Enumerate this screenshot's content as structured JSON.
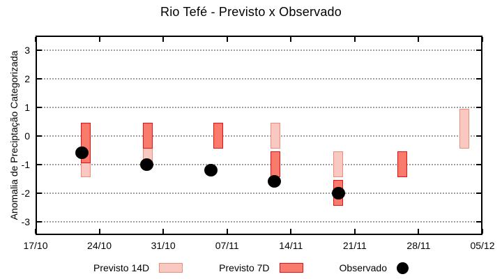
{
  "title": "Rio Tefé - Previsto x Observado",
  "y_axis": {
    "label": "Anomalia de Preciptação Categorizada",
    "ticks": [
      3,
      2,
      1,
      0,
      -1,
      -2,
      -3
    ],
    "range": [
      -3.5,
      3.5
    ]
  },
  "x_axis": {
    "tick_labels": [
      "17/10",
      "24/10",
      "31/10",
      "07/11",
      "14/11",
      "21/11",
      "28/11",
      "05/12"
    ],
    "tick_days": [
      0,
      7,
      14,
      21,
      28,
      35,
      42,
      49
    ],
    "span_days": 49
  },
  "legend": {
    "items": [
      {
        "label": "Previsto 14D",
        "swatch": "box",
        "fill": "#f9c8c0",
        "border": "#f08c7c"
      },
      {
        "label": "Previsto 7D",
        "swatch": "box",
        "fill": "#f87b6e",
        "border": "#e81010"
      },
      {
        "label": "Observado",
        "swatch": "dot",
        "fill": "#000000"
      }
    ]
  },
  "colors": {
    "background": "#ffffff",
    "axis": "#000000",
    "grid": "#9e9e9e",
    "p14_fill": "#f9c8c0",
    "p14_border": "#f08c7c",
    "p7_fill": "#f87b6e",
    "p7_border": "#e81010",
    "obs": "#000000"
  },
  "chart_data": {
    "type": "bar",
    "subtype": "weekly categorized-anomaly range bars with observed scatter points",
    "title": "Rio Tefé - Previsto x Observado",
    "xlabel": "",
    "ylabel": "Anomalia de Preciptação Categorizada",
    "ylim": [
      -3.5,
      3.5
    ],
    "x_range": [
      "17/10",
      "05/12"
    ],
    "grid": "horizontal dotted lines at integer values",
    "legend_position": "below plot",
    "series": [
      {
        "name": "Previsto 14D",
        "type": "range-bar",
        "points": [
          {
            "date": "22/10",
            "day": 5.5,
            "range": [
              -1.45,
              0.45
            ]
          },
          {
            "date": "29/10",
            "day": 12.3,
            "range": [
              -0.95,
              0.45
            ]
          },
          {
            "date": "12/11",
            "day": 26.3,
            "range": [
              -0.45,
              0.45
            ]
          },
          {
            "date": "19/11",
            "day": 33.2,
            "range": [
              -1.45,
              -0.55
            ]
          },
          {
            "date": "03/12",
            "day": 47.0,
            "range": [
              -0.45,
              0.95
            ]
          }
        ]
      },
      {
        "name": "Previsto 7D",
        "type": "range-bar",
        "points": [
          {
            "date": "22/10",
            "day": 5.5,
            "range": [
              -0.95,
              0.45
            ]
          },
          {
            "date": "29/10",
            "day": 12.3,
            "range": [
              -0.45,
              0.45
            ]
          },
          {
            "date": "05/11",
            "day": 20.0,
            "range": [
              -0.45,
              0.45
            ]
          },
          {
            "date": "12/11",
            "day": 26.3,
            "range": [
              -1.45,
              -0.55
            ]
          },
          {
            "date": "19/11",
            "day": 33.2,
            "range": [
              -2.45,
              -1.55
            ]
          },
          {
            "date": "26/11",
            "day": 40.2,
            "range": [
              -1.45,
              -0.55
            ]
          }
        ]
      },
      {
        "name": "Observado",
        "type": "scatter",
        "points": [
          {
            "date": "22/10",
            "day": 5.1,
            "value": -0.6
          },
          {
            "date": "29/10",
            "day": 12.2,
            "value": -1.0
          },
          {
            "date": "05/11",
            "day": 19.2,
            "value": -1.2
          },
          {
            "date": "12/11",
            "day": 26.2,
            "value": -1.6
          },
          {
            "date": "19/11",
            "day": 33.2,
            "value": -2.0
          }
        ]
      }
    ]
  }
}
